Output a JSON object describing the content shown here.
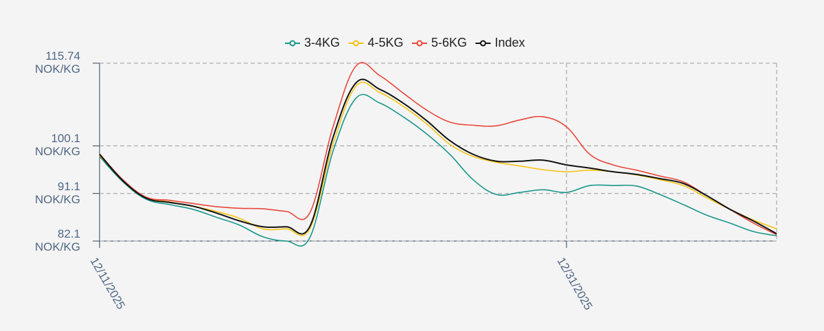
{
  "chart_data": {
    "type": "line",
    "x": [
      "12/11/2025",
      "12/12/2025",
      "12/13/2025",
      "12/14/2025",
      "12/15/2025",
      "12/16/2025",
      "12/17/2025",
      "12/18/2025",
      "12/19/2025",
      "12/20/2025",
      "12/21/2025",
      "12/22/2025",
      "12/23/2025",
      "12/24/2025",
      "12/25/2025",
      "12/26/2025",
      "12/27/2025",
      "12/28/2025",
      "12/29/2025",
      "12/30/2025",
      "12/31/2025",
      "01/01/2026",
      "01/02/2026",
      "01/03/2026",
      "01/04/2026",
      "01/05/2026",
      "01/06/2026",
      "01/07/2026",
      "01/08/2026",
      "01/09/2026"
    ],
    "xlim": [
      "12/11/2025",
      "01/09/2026"
    ],
    "xticks": [
      "12/11/2025",
      "12/31/2025"
    ],
    "ylim": [
      82.1,
      115.74
    ],
    "yticks": [
      {
        "value": 82.1,
        "label": "82.1\nNOK/KG"
      },
      {
        "value": 91.1,
        "label": "91.1\nNOK/KG"
      },
      {
        "value": 100.1,
        "label": "100.1\nNOK/KG"
      },
      {
        "value": 115.74,
        "label": "115.74\nNOK/KG"
      }
    ],
    "grid": true,
    "legend": "top",
    "series": [
      {
        "name": "3-4KG",
        "color": "#17968a",
        "values": [
          98.1,
          93.3,
          90.0,
          89.0,
          88.1,
          86.6,
          85.1,
          82.9,
          82.1,
          82.7,
          99.1,
          109.2,
          108.2,
          105.6,
          102.4,
          98.5,
          93.7,
          90.9,
          91.3,
          91.8,
          91.3,
          92.6,
          92.6,
          92.5,
          90.9,
          89.0,
          87.0,
          85.5,
          83.9,
          83.1
        ]
      },
      {
        "name": "4-5KG",
        "color": "#f5c211",
        "values": [
          98.3,
          93.7,
          90.3,
          89.5,
          88.7,
          87.7,
          86.4,
          84.4,
          84.4,
          84.4,
          100.4,
          111.5,
          110.2,
          107.6,
          104.3,
          100.4,
          98.1,
          97.0,
          96.3,
          95.6,
          95.2,
          95.5,
          95.2,
          94.6,
          93.7,
          92.6,
          90.3,
          88.1,
          86.1,
          84.4
        ]
      },
      {
        "name": "5-6KG",
        "color": "#e8463a",
        "values": [
          98.6,
          93.7,
          90.4,
          89.8,
          89.2,
          88.6,
          88.3,
          88.2,
          87.7,
          87.4,
          103.7,
          115.3,
          113.4,
          110.1,
          106.9,
          104.6,
          104.0,
          103.9,
          105.0,
          105.6,
          103.7,
          98.5,
          96.5,
          95.5,
          94.4,
          93.3,
          90.7,
          88.1,
          85.5,
          83.3
        ]
      },
      {
        "name": "Index",
        "color": "#111111",
        "values": [
          98.5,
          93.5,
          90.2,
          89.4,
          88.7,
          87.4,
          85.9,
          84.8,
          84.8,
          84.8,
          101.7,
          112.1,
          110.8,
          108.2,
          104.9,
          101.1,
          98.5,
          97.2,
          97.2,
          97.4,
          96.5,
          95.9,
          95.2,
          94.7,
          93.9,
          93.0,
          90.7,
          88.1,
          85.9,
          83.5
        ]
      }
    ]
  }
}
